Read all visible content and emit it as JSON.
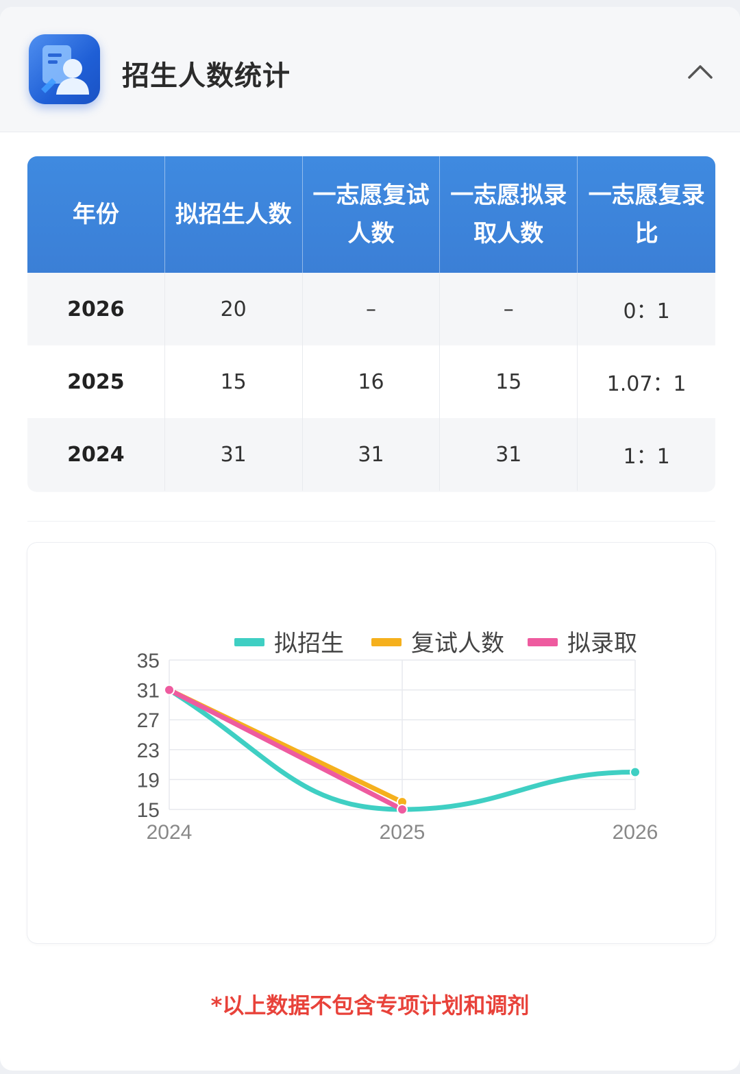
{
  "header": {
    "title": "招生人数统计",
    "icon": "user-profile-icon",
    "collapse_icon": "chevron-up-icon"
  },
  "table": {
    "columns": [
      "年份",
      "拟招生人数",
      "一志愿复试人数",
      "一志愿拟录取人数",
      "一志愿复录比"
    ],
    "rows": [
      [
        "2026",
        "20",
        "–",
        "–",
        "0：1"
      ],
      [
        "2025",
        "15",
        "16",
        "15",
        "1.07：1"
      ],
      [
        "2024",
        "31",
        "31",
        "31",
        "1：1"
      ]
    ]
  },
  "chart_data": {
    "type": "line",
    "x": [
      "2024",
      "2025",
      "2026"
    ],
    "ylim": [
      15,
      35
    ],
    "yticks": [
      "35",
      "31",
      "27",
      "23",
      "19",
      "15"
    ],
    "legend_position": "top-right",
    "grid": true,
    "series": [
      {
        "name": "拟招生",
        "values": [
          31,
          15,
          20
        ],
        "color": "#3fcfc3",
        "smooth": true
      },
      {
        "name": "复试人数",
        "values": [
          31,
          16,
          null
        ],
        "color": "#f5b01d",
        "smooth": false
      },
      {
        "name": "拟录取",
        "values": [
          31,
          15,
          null
        ],
        "color": "#ee5b9f",
        "smooth": false
      }
    ]
  },
  "footnote": "*以上数据不包含专项计划和调剂",
  "colors": {
    "header_blue": "#3b7fd6",
    "footnote_red": "#e8423a"
  }
}
